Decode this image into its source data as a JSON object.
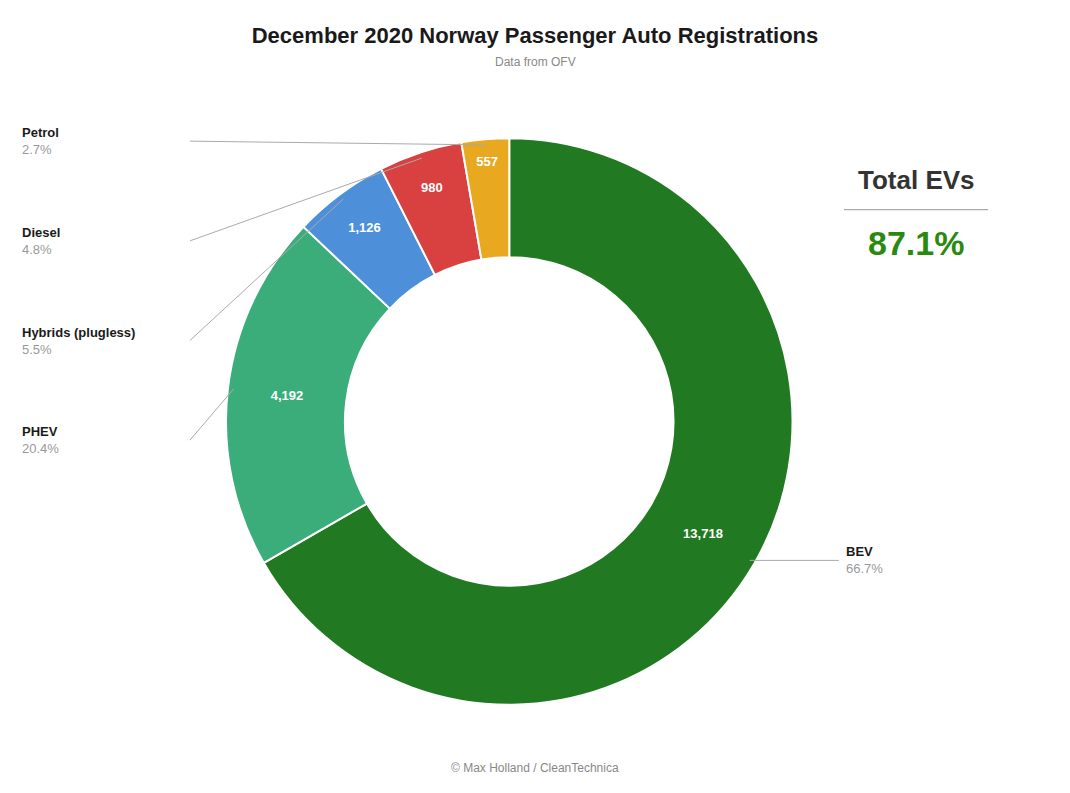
{
  "chart_data": {
    "type": "donut",
    "title": "December 2020 Norway Passenger Auto Registrations",
    "subtitle": "Data from OFV",
    "footer": "© Max Holland / CleanTechnica",
    "categories": [
      "BEV",
      "PHEV",
      "Hybrids (plugless)",
      "Diesel",
      "Petrol"
    ],
    "values": [
      13718,
      4192,
      1126,
      980,
      557
    ],
    "value_labels": [
      "13,718",
      "4,192",
      "1,126",
      "980",
      "557"
    ],
    "share_labels": [
      "66.7%",
      "20.4%",
      "5.5%",
      "4.8%",
      "2.7%"
    ],
    "colors": [
      "#217a21",
      "#3aad7a",
      "#4d90d9",
      "#d94040",
      "#e8a820"
    ],
    "data_labels": true,
    "annotations": [
      "Total EVs",
      "87.1%"
    ]
  }
}
